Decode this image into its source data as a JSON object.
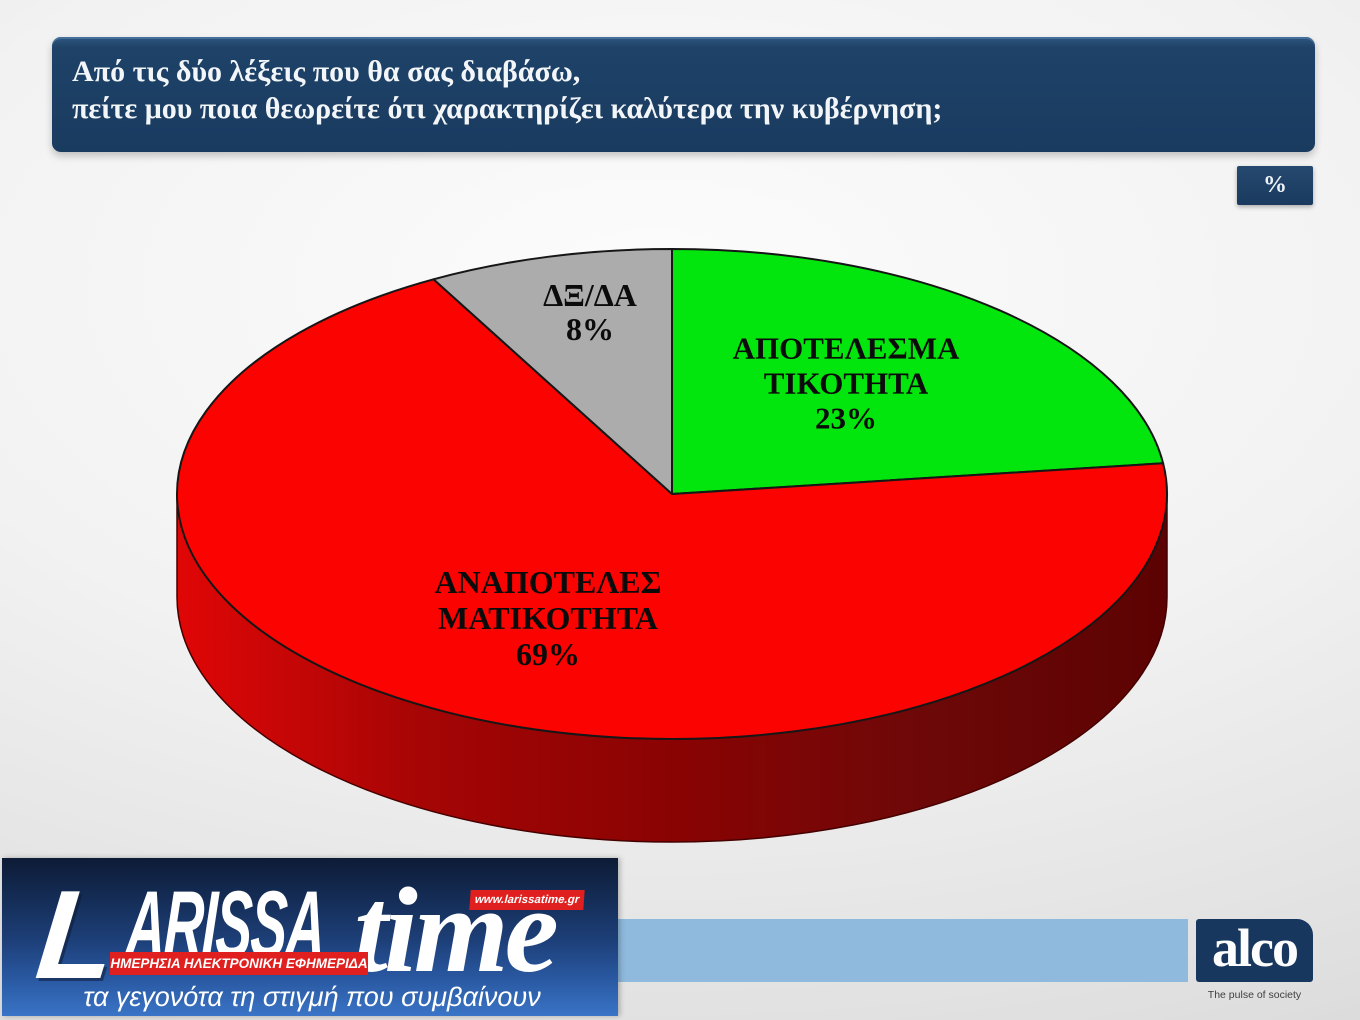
{
  "header": {
    "question_line1": "Από τις δύο λέξεις που θα σας διαβάσω,",
    "question_line2": "πείτε μου ποια θεωρείτε ότι χαρακτηρίζει καλύτερα την κυβέρνηση;"
  },
  "unit_badge": {
    "label": "%"
  },
  "chart_data": {
    "type": "pie",
    "style": "3d",
    "title": "",
    "unit": "%",
    "direction": "clockwise",
    "start_angle_deg": 0,
    "legend": "none",
    "slices": [
      {
        "label": "ΑΠΟΤΕΛΕΣΜΑΤΙΚΟΤΗΤΑ",
        "value": 23,
        "color": "#03e60d",
        "label_lines": [
          "ΑΠΟΤΕΛΕΣΜΑ",
          "ΤΙΚΟΤΗΤΑ",
          "23%"
        ]
      },
      {
        "label": "ΑΝΑΠΟΤΕΛΕΣΜΑΤΙΚΟΤΗΤΑ",
        "value": 69,
        "color": "#fb0300",
        "label_lines": [
          "ΑΝΑΠΟΤΕΛΕΣ",
          "ΜΑΤΙΚΟΤΗΤΑ",
          "69%"
        ]
      },
      {
        "label": "ΔΞ/ΔΑ",
        "value": 8,
        "color": "#acacac",
        "label_lines": [
          "ΔΞ/ΔΑ",
          "8%"
        ]
      }
    ],
    "side_gradient": [
      "#e00606",
      "#a50505",
      "#8a0303",
      "#6e0808",
      "#5c0202"
    ]
  },
  "branding": {
    "larissatime": {
      "wordmark_l": "L",
      "wordmark_main": "ARISSA",
      "wordmark_suffix": "time",
      "url_badge": "www.larissatime.gr",
      "strip": "ΗΜΕΡΗΣΙΑ ΗΛΕΚΤΡΟΝΙΚΗ ΕΦΗΜΕΡΙΔΑ",
      "tagline": "τα γεγονότα τη στιγμή που συμβαίνουν"
    },
    "alco": {
      "name": "alco",
      "tagline": "The pulse of society"
    }
  },
  "colors": {
    "header_navy": "#1d4066",
    "band_blue": "#8fb9dd",
    "brand_red": "#e0201f",
    "alco_navy": "#17375e",
    "slice_green": "#03e60d",
    "slice_red": "#fb0300",
    "slice_gray": "#acacac"
  }
}
